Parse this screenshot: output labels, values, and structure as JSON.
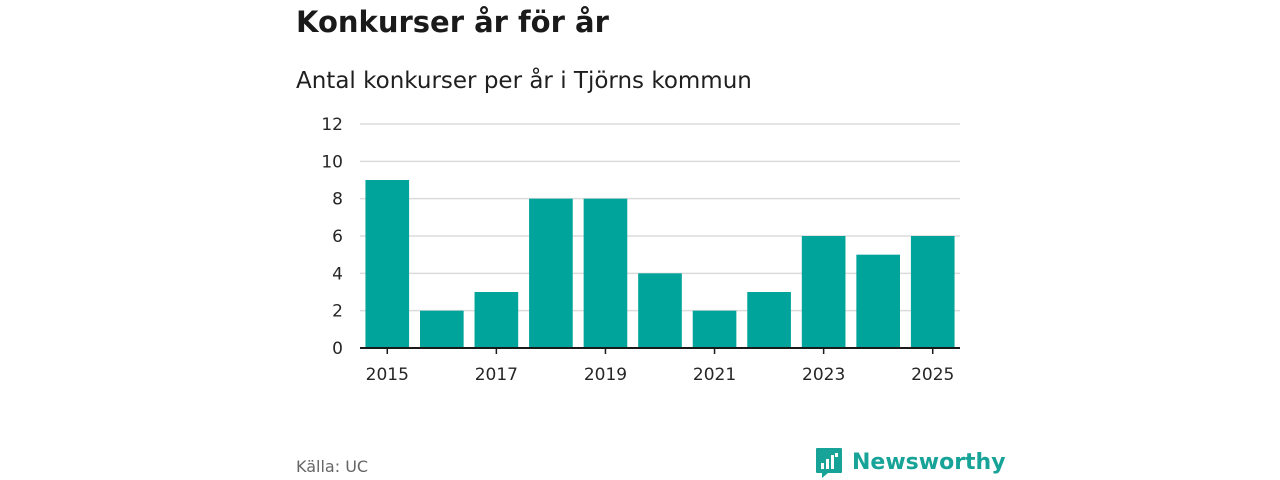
{
  "header": {
    "title": "Konkurser år för år",
    "subtitle": "Antal konkurser per år i Tjörns kommun"
  },
  "footer": {
    "source": "Källa: UC",
    "brand": "Newsworthy"
  },
  "colors": {
    "bar": "#00a49a",
    "grid": "#dcdcdc",
    "axis": "#1a1a1a",
    "brand": "#17a397"
  },
  "chart_data": {
    "type": "bar",
    "categories": [
      "2015",
      "2016",
      "2017",
      "2018",
      "2019",
      "2020",
      "2021",
      "2022",
      "2023",
      "2024",
      "2025"
    ],
    "values": [
      9,
      2,
      3,
      8,
      8,
      4,
      2,
      3,
      6,
      5,
      6
    ],
    "x_tick_labels": [
      "2015",
      "2017",
      "2019",
      "2021",
      "2023",
      "2025"
    ],
    "y_ticks": [
      0,
      2,
      4,
      6,
      8,
      10,
      12
    ],
    "ylim": [
      0,
      12
    ],
    "grid": true,
    "legend": "none"
  }
}
